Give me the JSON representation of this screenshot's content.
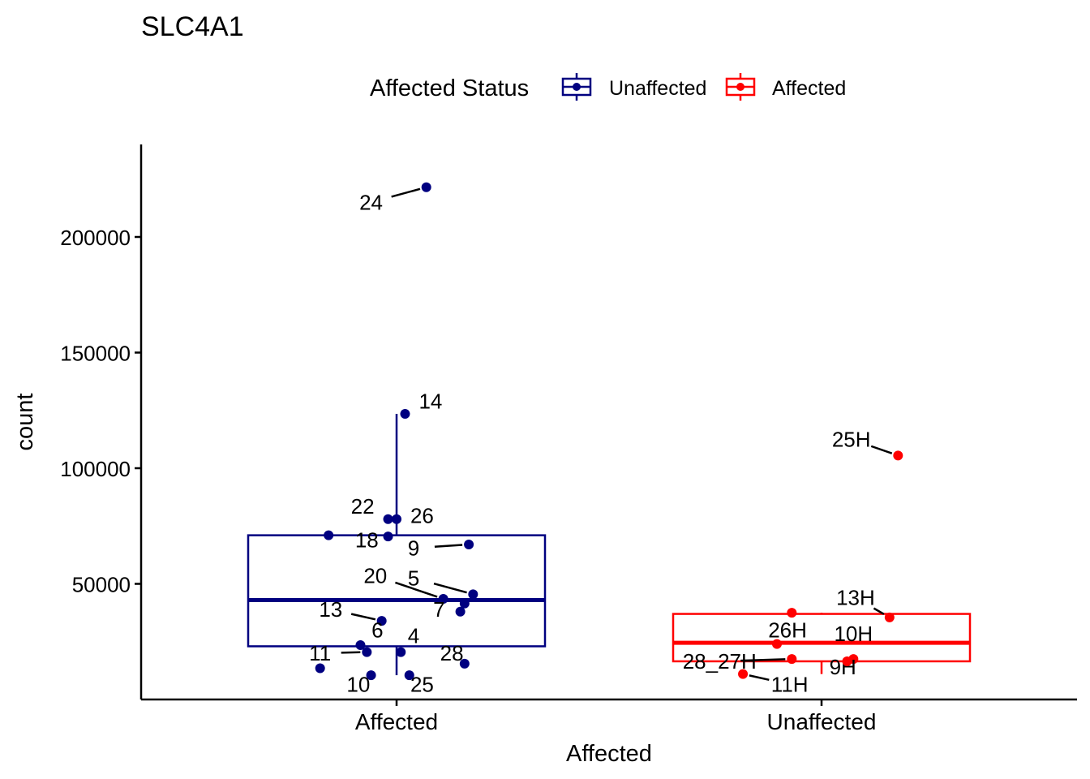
{
  "chart_data": {
    "type": "boxplot",
    "title": "SLC4A1",
    "xlabel": "Affected",
    "ylabel": "count",
    "ylim": [
      0,
      240000
    ],
    "y_ticks": [
      50000,
      100000,
      150000,
      200000
    ],
    "y_tick_labels": [
      "50000",
      "100000",
      "150000",
      "200000"
    ],
    "categories": [
      "Affected",
      "Unaffected"
    ],
    "legend": {
      "title": "Affected Status",
      "position": "top",
      "entries": [
        {
          "label": "Unaffected",
          "color": "#000080"
        },
        {
          "label": "Affected",
          "color": "#ff0000"
        }
      ]
    },
    "boxes": [
      {
        "category": "Affected",
        "color": "#000080",
        "q1": 23000,
        "median": 43000,
        "q3": 71000,
        "whisker_low": 10500,
        "whisker_high": 123500
      },
      {
        "category": "Unaffected",
        "color": "#ff0000",
        "q1": 16500,
        "median": 24500,
        "q3": 37000,
        "whisker_low": 11000,
        "whisker_high": 37500
      }
    ],
    "points": [
      {
        "category": "Affected",
        "color": "#000080",
        "jitter": 0.07,
        "y": 221500,
        "label": "24",
        "label_dx": -0.13,
        "label_dy": -6500
      },
      {
        "category": "Affected",
        "color": "#000080",
        "jitter": 0.02,
        "y": 123500,
        "label": "14",
        "label_dx": 0.06,
        "label_dy": 5500
      },
      {
        "category": "Affected",
        "color": "#000080",
        "jitter": -0.02,
        "y": 78000,
        "label": "22",
        "label_dx": -0.06,
        "label_dy": 5500
      },
      {
        "category": "Affected",
        "color": "#000080",
        "jitter": 0.0,
        "y": 78000,
        "label": "26",
        "label_dx": 0.06,
        "label_dy": 1500
      },
      {
        "category": "Affected",
        "color": "#000080",
        "jitter": -0.16,
        "y": 71000,
        "label": "",
        "label_dx": 0,
        "label_dy": 0
      },
      {
        "category": "Affected",
        "color": "#000080",
        "jitter": -0.02,
        "y": 70500,
        "label": "18",
        "label_dx": -0.05,
        "label_dy": -1500
      },
      {
        "category": "Affected",
        "color": "#000080",
        "jitter": 0.17,
        "y": 67000,
        "label": "9",
        "label_dx": -0.13,
        "label_dy": -1500
      },
      {
        "category": "Affected",
        "color": "#000080",
        "jitter": 0.11,
        "y": 43500,
        "label": "20",
        "label_dx": -0.16,
        "label_dy": 10000
      },
      {
        "category": "Affected",
        "color": "#000080",
        "jitter": 0.18,
        "y": 45500,
        "label": "5",
        "label_dx": -0.14,
        "label_dy": 7000
      },
      {
        "category": "Affected",
        "color": "#000080",
        "jitter": 0.16,
        "y": 41500,
        "label": "",
        "label_dx": 0,
        "label_dy": 0
      },
      {
        "category": "Affected",
        "color": "#000080",
        "jitter": 0.15,
        "y": 38000,
        "label": "7",
        "label_dx": -0.05,
        "label_dy": 1000
      },
      {
        "category": "Affected",
        "color": "#000080",
        "jitter": -0.035,
        "y": 34000,
        "label": "13",
        "label_dx": -0.12,
        "label_dy": 5000
      },
      {
        "category": "Affected",
        "color": "#000080",
        "jitter": -0.085,
        "y": 23500,
        "label": "6",
        "label_dx": 0.04,
        "label_dy": 6500
      },
      {
        "category": "Affected",
        "color": "#000080",
        "jitter": 0.01,
        "y": 20500,
        "label": "4",
        "label_dx": 0.03,
        "label_dy": 7000
      },
      {
        "category": "Affected",
        "color": "#000080",
        "jitter": 0.16,
        "y": 15500,
        "label": "28",
        "label_dx": -0.03,
        "label_dy": 4500
      },
      {
        "category": "Affected",
        "color": "#000080",
        "jitter": -0.07,
        "y": 20500,
        "label": "11",
        "label_dx": -0.11,
        "label_dy": -500
      },
      {
        "category": "Affected",
        "color": "#000080",
        "jitter": -0.18,
        "y": 13500,
        "label": "",
        "label_dx": 0,
        "label_dy": 0
      },
      {
        "category": "Affected",
        "color": "#000080",
        "jitter": 0.03,
        "y": 10500,
        "label": "25",
        "label_dx": 0.03,
        "label_dy": -4000
      },
      {
        "category": "Affected",
        "color": "#000080",
        "jitter": -0.06,
        "y": 10500,
        "label": "10",
        "label_dx": -0.03,
        "label_dy": -4000
      },
      {
        "category": "Unaffected",
        "color": "#ff0000",
        "jitter": 0.18,
        "y": 105500,
        "label": "25H",
        "label_dx": -0.11,
        "label_dy": 7000
      },
      {
        "category": "Unaffected",
        "color": "#ff0000",
        "jitter": 0.16,
        "y": 35500,
        "label": "13H",
        "label_dx": -0.08,
        "label_dy": 8500
      },
      {
        "category": "Unaffected",
        "color": "#ff0000",
        "jitter": -0.07,
        "y": 37500,
        "label": "",
        "label_dx": 0,
        "label_dy": 0
      },
      {
        "category": "Unaffected",
        "color": "#ff0000",
        "jitter": -0.105,
        "y": 24000,
        "label": "26H",
        "label_dx": 0.025,
        "label_dy": 6000
      },
      {
        "category": "Unaffected",
        "color": "#ff0000",
        "jitter": 0.075,
        "y": 17500,
        "label": "10H",
        "label_dx": 0.0,
        "label_dy": 11000
      },
      {
        "category": "Unaffected",
        "color": "#ff0000",
        "jitter": 0.06,
        "y": 16500,
        "label": "9H",
        "label_dx": -0.01,
        "label_dy": -2500
      },
      {
        "category": "Unaffected",
        "color": "#ff0000",
        "jitter": -0.185,
        "y": 11000,
        "label": "11H",
        "label_dx": 0.11,
        "label_dy": -4500
      },
      {
        "category": "Unaffected",
        "color": "#ff0000",
        "jitter": -0.07,
        "y": 17500,
        "label": "28_27H",
        "label_dx": -0.17,
        "label_dy": -1000
      }
    ]
  }
}
